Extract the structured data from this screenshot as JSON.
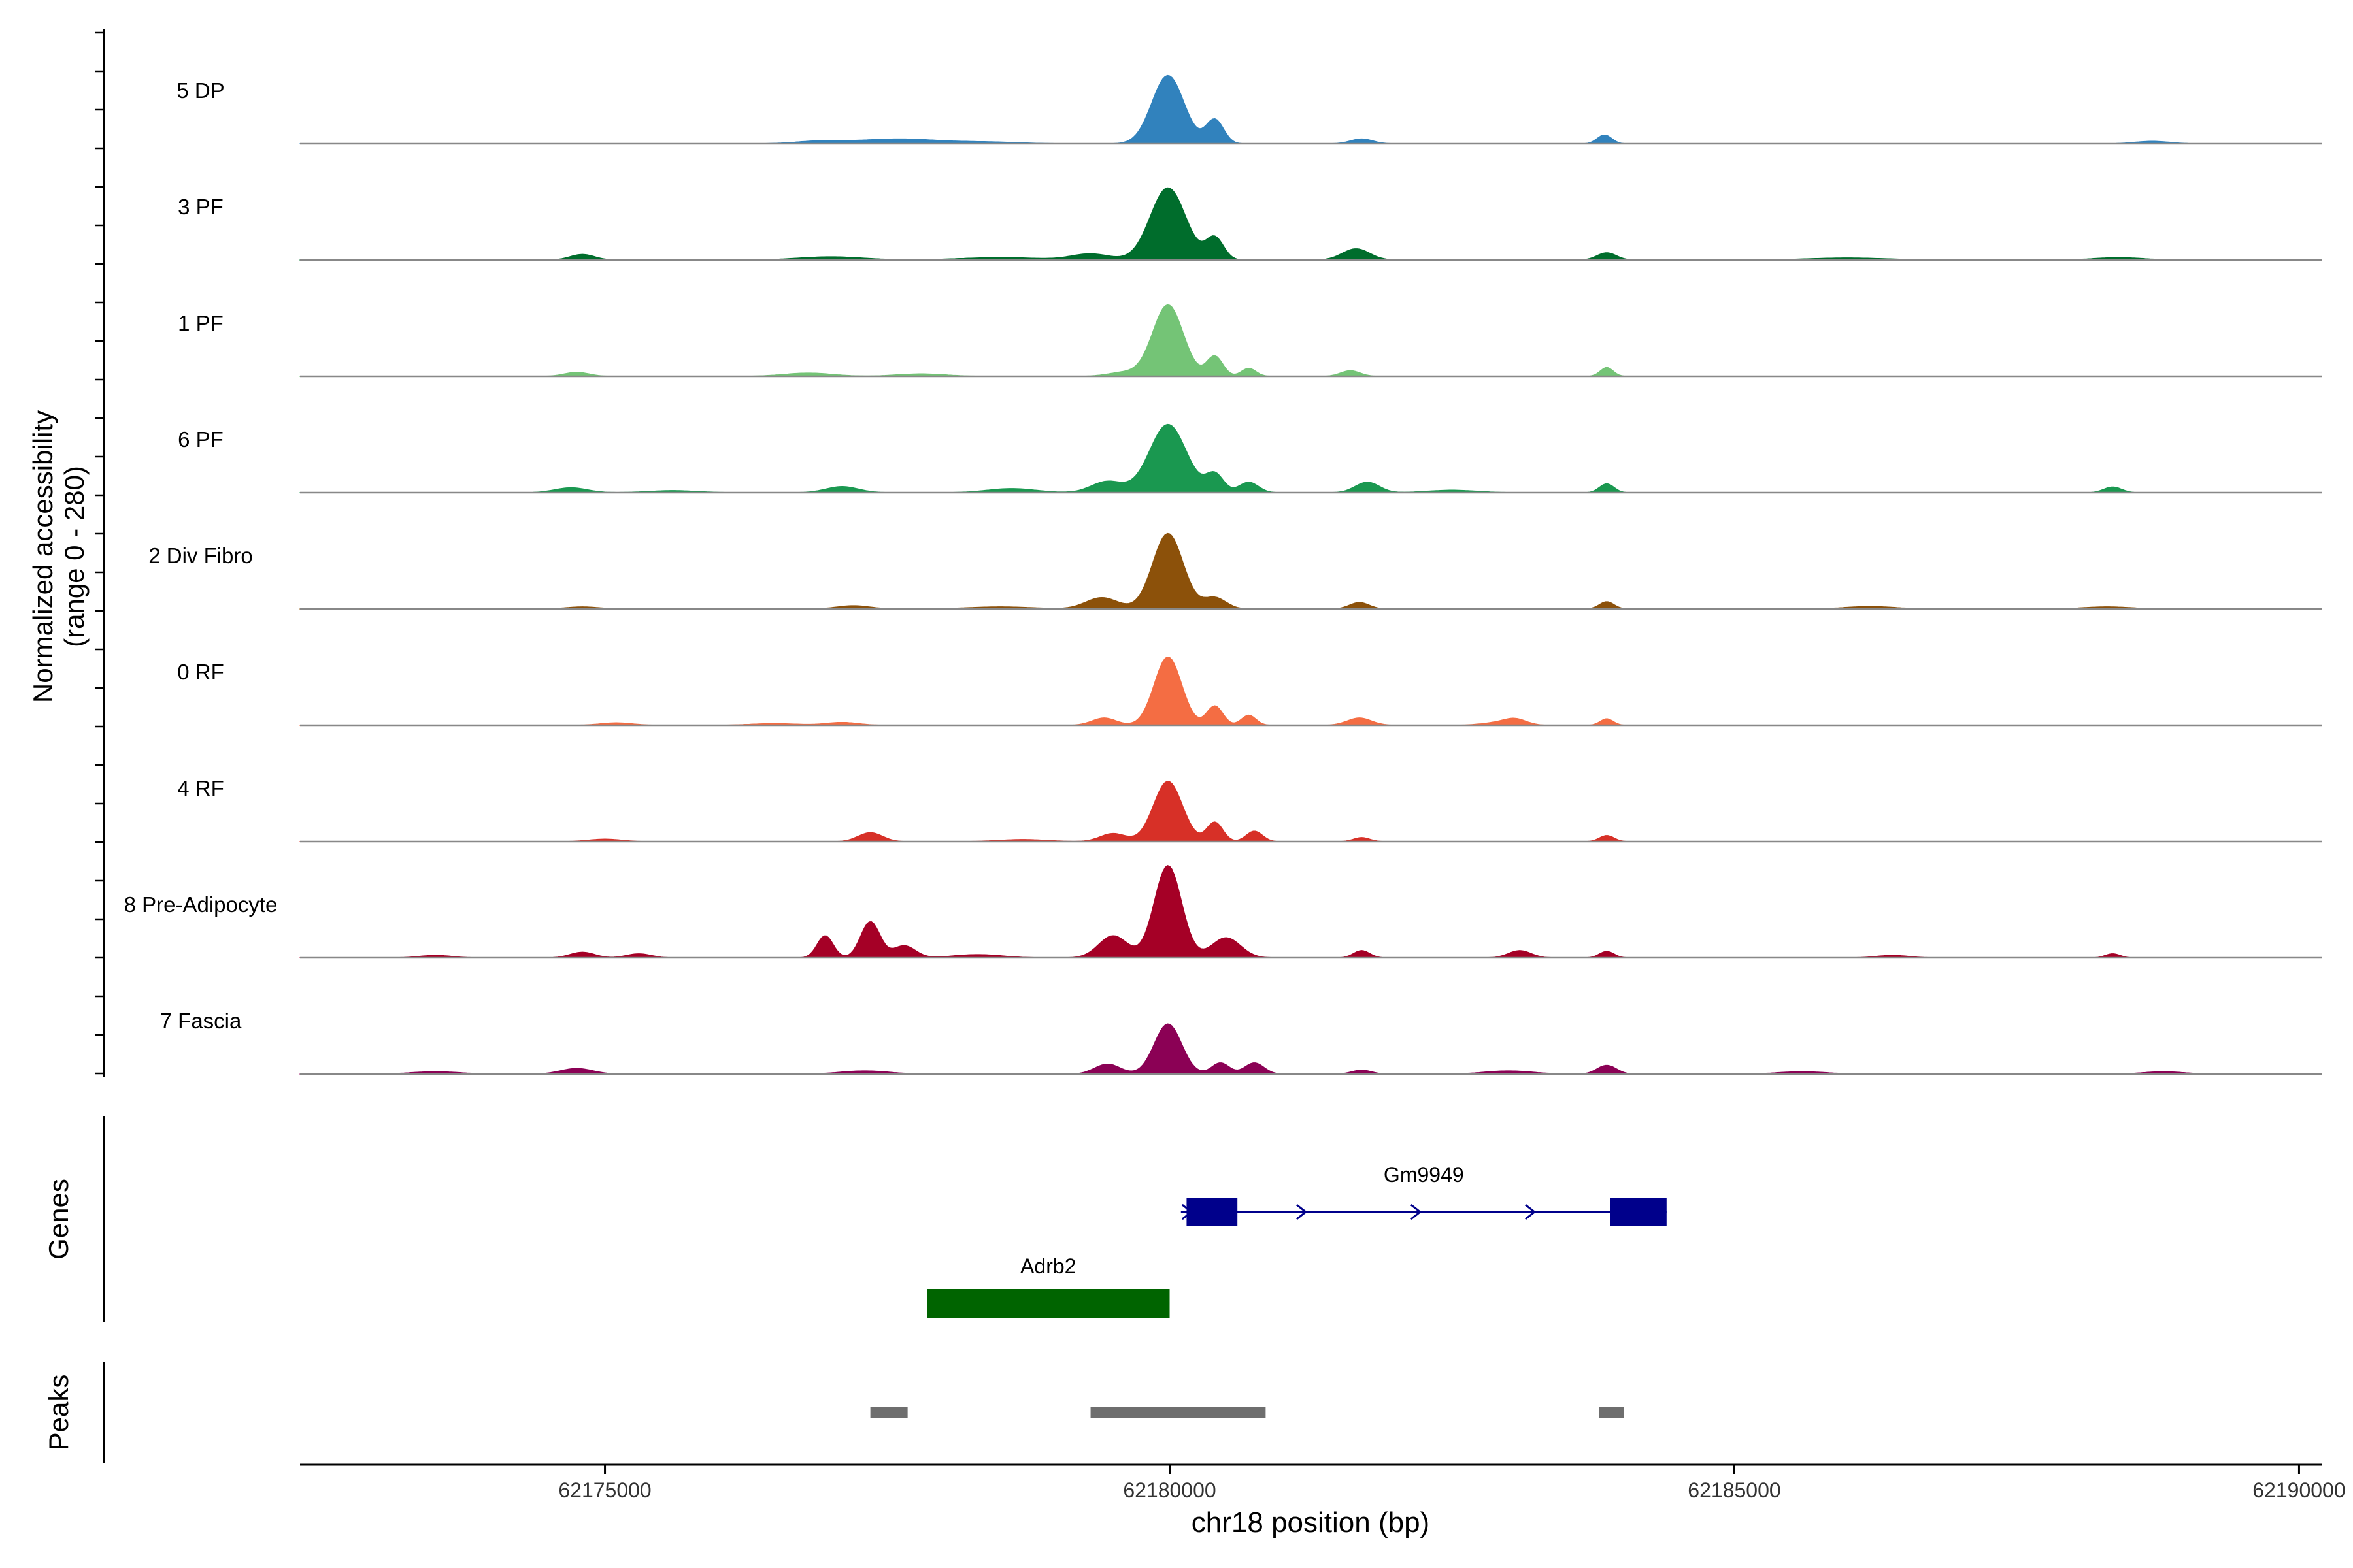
{
  "chart_data": {
    "type": "area",
    "title": "",
    "y_axis": {
      "label_line1": "Normalized accessibility",
      "label_line2": "(range 0 - 280)",
      "range": [
        0,
        280
      ]
    },
    "x_axis": {
      "label": "chr18 position (bp)",
      "range": [
        62172300,
        62190200
      ],
      "ticks": [
        {
          "value": 62175000,
          "label": "62175000"
        },
        {
          "value": 62180000,
          "label": "62180000"
        },
        {
          "value": 62185000,
          "label": "62185000"
        },
        {
          "value": 62190000,
          "label": "62190000"
        }
      ]
    },
    "track_extent": [
      62172300,
      62189400
    ],
    "series": [
      {
        "name": "5 DP",
        "color": "#3182BD",
        "peaks": [
          [
            62179985,
            170,
            200
          ],
          [
            62180400,
            60,
            110
          ],
          [
            62177600,
            12,
            500
          ],
          [
            62176900,
            6,
            300
          ],
          [
            62181700,
            12,
            140
          ],
          [
            62183850,
            22,
            90
          ],
          [
            62178400,
            4,
            400
          ],
          [
            62188700,
            6,
            220
          ]
        ]
      },
      {
        "name": "3 PF",
        "color": "#006D2C",
        "peaks": [
          [
            62179985,
            180,
            220
          ],
          [
            62180400,
            55,
            110
          ],
          [
            62179300,
            15,
            240
          ],
          [
            62181650,
            28,
            170
          ],
          [
            62183870,
            18,
            120
          ],
          [
            62174800,
            14,
            150
          ],
          [
            62177000,
            8,
            400
          ],
          [
            62178500,
            6,
            500
          ],
          [
            62186000,
            5,
            500
          ],
          [
            62188400,
            6,
            300
          ]
        ]
      },
      {
        "name": "1 PF",
        "color": "#74C476",
        "peaks": [
          [
            62179985,
            178,
            190
          ],
          [
            62180400,
            50,
            100
          ],
          [
            62180700,
            20,
            90
          ],
          [
            62179600,
            10,
            200
          ],
          [
            62181600,
            14,
            120
          ],
          [
            62183870,
            22,
            80
          ],
          [
            62174750,
            10,
            150
          ],
          [
            62176800,
            8,
            300
          ],
          [
            62177800,
            6,
            300
          ]
        ]
      },
      {
        "name": "6 PF",
        "color": "#1A9850",
        "peaks": [
          [
            62179985,
            170,
            230
          ],
          [
            62180400,
            45,
            110
          ],
          [
            62180700,
            26,
            120
          ],
          [
            62179450,
            28,
            200
          ],
          [
            62181750,
            26,
            150
          ],
          [
            62183870,
            22,
            90
          ],
          [
            62174700,
            12,
            200
          ],
          [
            62177100,
            15,
            200
          ],
          [
            62178600,
            10,
            300
          ],
          [
            62188350,
            14,
            110
          ],
          [
            62182500,
            6,
            300
          ],
          [
            62175600,
            5,
            300
          ]
        ]
      },
      {
        "name": "2 Div Fibro",
        "color": "#8C510A",
        "peaks": [
          [
            62179985,
            188,
            190
          ],
          [
            62180400,
            28,
            140
          ],
          [
            62179400,
            28,
            200
          ],
          [
            62181680,
            16,
            120
          ],
          [
            62183870,
            18,
            90
          ],
          [
            62177200,
            8,
            200
          ],
          [
            62186200,
            6,
            300
          ],
          [
            62174800,
            5,
            200
          ],
          [
            62178500,
            5,
            400
          ],
          [
            62188300,
            5,
            300
          ]
        ]
      },
      {
        "name": "0 RF",
        "color": "#F46D43",
        "peaks": [
          [
            62179985,
            170,
            170
          ],
          [
            62180400,
            48,
            100
          ],
          [
            62180700,
            25,
            90
          ],
          [
            62179420,
            18,
            150
          ],
          [
            62181680,
            18,
            150
          ],
          [
            62183060,
            14,
            140
          ],
          [
            62183870,
            16,
            80
          ],
          [
            62175100,
            6,
            200
          ],
          [
            62177100,
            7,
            200
          ],
          [
            62182900,
            6,
            200
          ],
          [
            62176500,
            4,
            300
          ]
        ]
      },
      {
        "name": "4 RF",
        "color": "#D73027",
        "peaks": [
          [
            62179985,
            150,
            180
          ],
          [
            62180400,
            48,
            100
          ],
          [
            62180750,
            26,
            100
          ],
          [
            62179500,
            20,
            160
          ],
          [
            62177350,
            22,
            150
          ],
          [
            62183870,
            15,
            90
          ],
          [
            62181700,
            10,
            100
          ],
          [
            62175000,
            6,
            200
          ],
          [
            62178700,
            5,
            300
          ]
        ]
      },
      {
        "name": "8 Pre-Adipocyte",
        "color": "#A50026",
        "peaks": [
          [
            62179985,
            230,
            170
          ],
          [
            62180500,
            50,
            180
          ],
          [
            62179500,
            55,
            180
          ],
          [
            62177350,
            90,
            120
          ],
          [
            62176950,
            55,
            100
          ],
          [
            62177650,
            30,
            140
          ],
          [
            62181700,
            18,
            100
          ],
          [
            62183100,
            18,
            140
          ],
          [
            62183870,
            16,
            90
          ],
          [
            62174800,
            14,
            150
          ],
          [
            62175300,
            10,
            150
          ],
          [
            62178300,
            8,
            300
          ],
          [
            62173500,
            6,
            200
          ],
          [
            62188350,
            10,
            90
          ],
          [
            62186400,
            6,
            200
          ]
        ]
      },
      {
        "name": "7 Fascia",
        "color": "#8B0155",
        "peaks": [
          [
            62179985,
            125,
            170
          ],
          [
            62180450,
            28,
            110
          ],
          [
            62180750,
            28,
            120
          ],
          [
            62179450,
            25,
            160
          ],
          [
            62183870,
            22,
            120
          ],
          [
            62174750,
            14,
            200
          ],
          [
            62177300,
            8,
            300
          ],
          [
            62181700,
            10,
            120
          ],
          [
            62183000,
            8,
            300
          ],
          [
            62185600,
            6,
            300
          ],
          [
            62188800,
            6,
            250
          ],
          [
            62173500,
            6,
            300
          ]
        ]
      }
    ],
    "genes": [
      {
        "name": "Gm9949",
        "strand": "+",
        "color": "#00008B",
        "start": 62180100,
        "end": 62184400,
        "exons": [
          [
            62180150,
            62180600
          ],
          [
            62183900,
            62184400
          ]
        ]
      },
      {
        "name": "Adrb2",
        "strand": "",
        "color": "#006400",
        "start": 62177850,
        "end": 62180000,
        "exons": [
          [
            62177850,
            62180000
          ]
        ]
      }
    ],
    "peaks_track": [
      [
        62177350,
        62177680
      ],
      [
        62179300,
        62180850
      ],
      [
        62183800,
        62184020
      ]
    ],
    "panel_labels": {
      "genes": "Genes",
      "peaks": "Peaks"
    },
    "colors": {
      "baseline": "#888888",
      "peak_region": "#6E6E6E",
      "axis": "#000000",
      "tick_text": "#333333"
    }
  }
}
